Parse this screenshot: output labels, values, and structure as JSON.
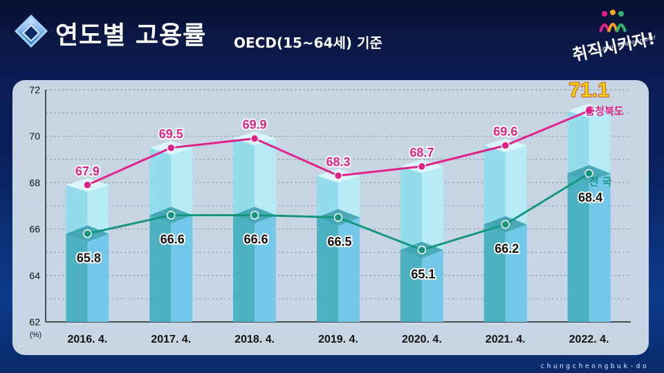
{
  "header": {
    "title": "연도별 고용률",
    "subtitle": "OECD(15~64세) 기준",
    "logo_text": "취직시키자!",
    "logo_sub": "Let us employ more!"
  },
  "footer": "chungcheongbuk-do",
  "colors": {
    "chungbuk_line": "#e0218a",
    "national_line": "#13957e",
    "bar_top": "#8fdcec",
    "bar_bottom": "#6cc4e8",
    "highlight_label": "#f5d000"
  },
  "chart_data": {
    "type": "line",
    "categories": [
      "2016. 4.",
      "2017. 4.",
      "2018. 4.",
      "2019. 4.",
      "2020. 4.",
      "2021. 4.",
      "2022. 4."
    ],
    "y_unit_label": "(%)",
    "ylim": [
      62,
      72
    ],
    "yticks": [
      62,
      64,
      66,
      68,
      70,
      72
    ],
    "grid": true,
    "series": [
      {
        "name": "충청북도",
        "values": [
          67.9,
          69.5,
          69.9,
          68.3,
          68.7,
          69.6,
          71.1
        ]
      },
      {
        "name": "전 국",
        "values": [
          65.8,
          66.6,
          66.6,
          66.5,
          65.1,
          66.2,
          68.4
        ]
      }
    ],
    "legend_placement": "right"
  }
}
